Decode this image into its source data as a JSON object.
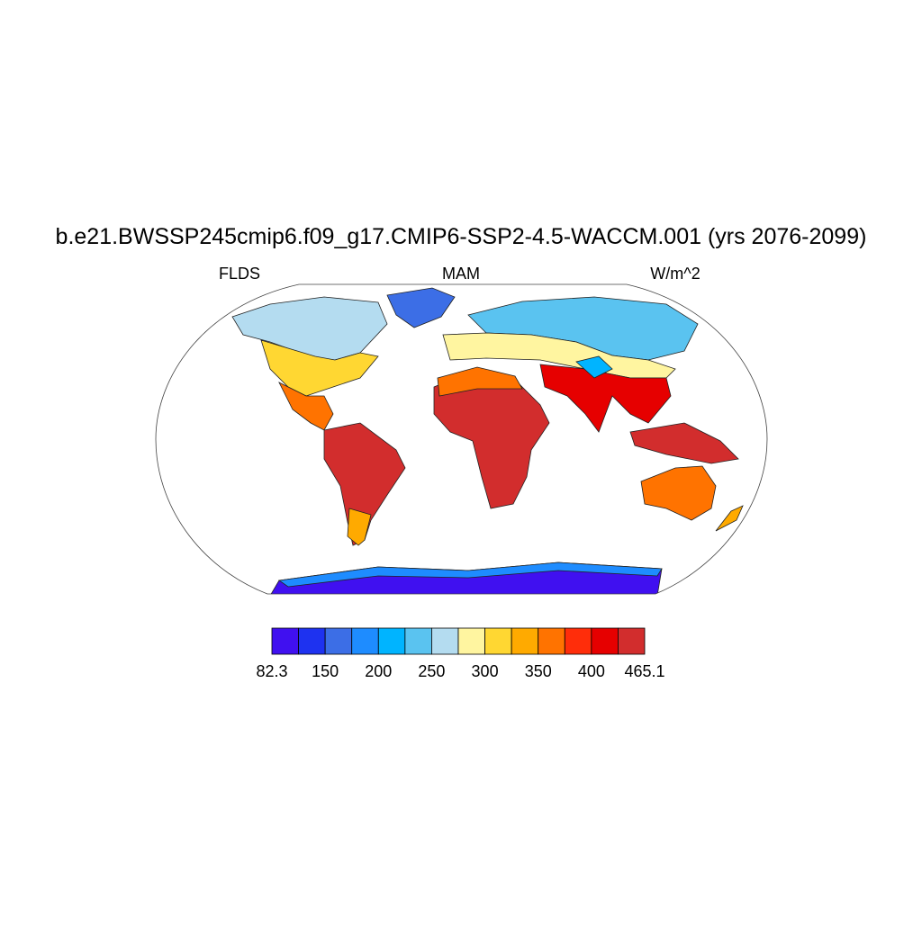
{
  "title": "b.e21.BWSSP245cmip6.f09_g17.CMIP6-SSP2-4.5-WACCM.001 (yrs 2076-2099)",
  "left_string": "FLDS",
  "center_string": "MAM",
  "right_string": "W/m^2",
  "colorbar": {
    "colors": [
      "#4010f0",
      "#1e32f0",
      "#3c6ee6",
      "#1e8cff",
      "#00b4ff",
      "#5ac3f0",
      "#b4dcf0",
      "#fff5a0",
      "#ffd732",
      "#ffaa00",
      "#ff7300",
      "#ff2d0a",
      "#e60000",
      "#d22d2d"
    ],
    "labels": [
      82.3,
      150,
      200,
      250,
      300,
      350,
      400,
      465.1
    ]
  }
}
